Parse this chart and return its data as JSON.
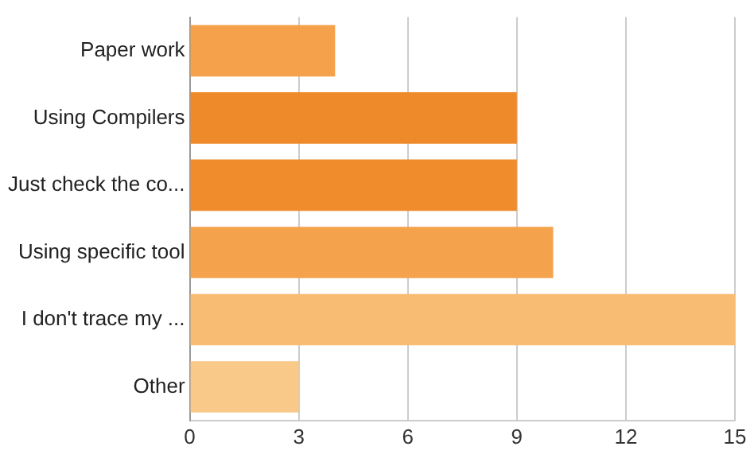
{
  "chart_data": {
    "type": "bar",
    "orientation": "horizontal",
    "categories": [
      "Paper work",
      "Using Compilers",
      "Just check the co...",
      "Using specific tool",
      "I don't trace my ...",
      "Other"
    ],
    "values": [
      4,
      9,
      9,
      10,
      15,
      3
    ],
    "colors": [
      "#f5a04a",
      "#ef8a2a",
      "#f08c2c",
      "#f5a24c",
      "#f8bc72",
      "#f9c98a"
    ],
    "xlim": [
      0,
      15
    ],
    "xticks": [
      0,
      3,
      6,
      9,
      12,
      15
    ],
    "grid": "x",
    "legend": false
  }
}
